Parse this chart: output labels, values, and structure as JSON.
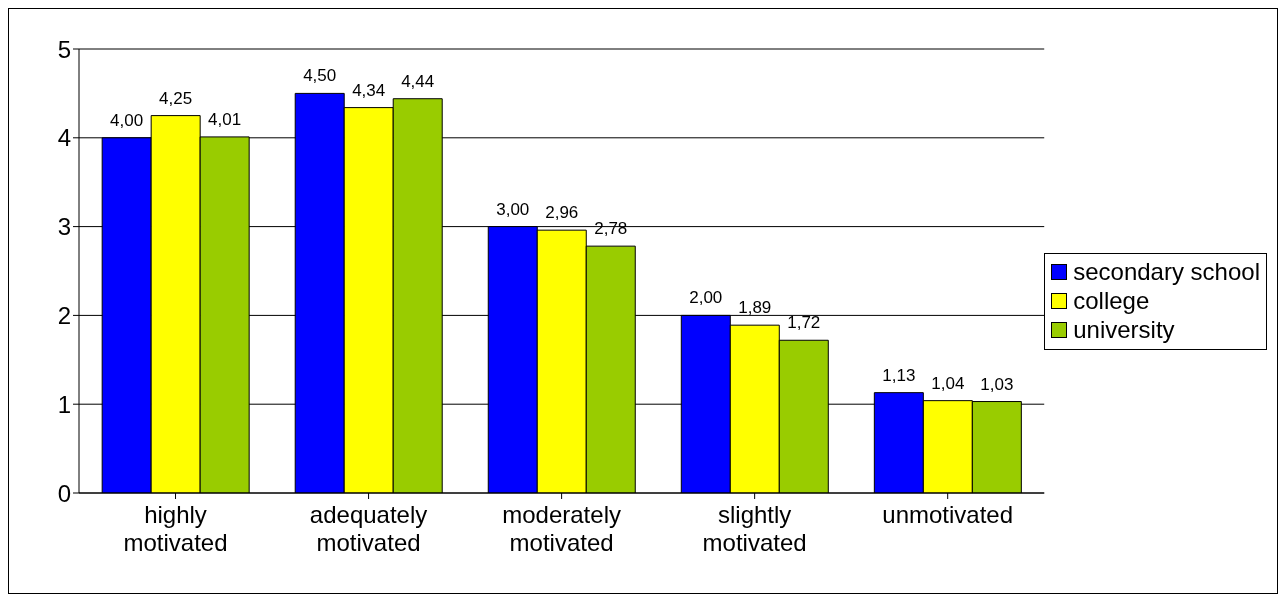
{
  "chart_data": {
    "type": "bar",
    "categories": [
      "highly motivated",
      "adequately motivated",
      "moderately motivated",
      "slightly motivated",
      "unmotivated"
    ],
    "series": [
      {
        "name": "secondary school",
        "color": "#0000ff",
        "values": [
          4.0,
          4.5,
          3.0,
          2.0,
          1.13
        ],
        "value_labels": [
          "4,00",
          "4,50",
          "3,00",
          "2,00",
          "1,13"
        ]
      },
      {
        "name": "college",
        "color": "#ffff00",
        "values": [
          4.25,
          4.34,
          2.96,
          1.89,
          1.04
        ],
        "value_labels": [
          "4,25",
          "4,34",
          "2,96",
          "1,89",
          "1,04"
        ]
      },
      {
        "name": "university",
        "color": "#99cc00",
        "values": [
          4.01,
          4.44,
          2.78,
          1.72,
          1.03
        ],
        "value_labels": [
          "4,01",
          "4,44",
          "2,78",
          "1,72",
          "1,03"
        ]
      }
    ],
    "ylim": [
      0,
      5
    ],
    "yticks": [
      0,
      1,
      2,
      3,
      4,
      5
    ],
    "grid": "y",
    "legend": "right"
  }
}
